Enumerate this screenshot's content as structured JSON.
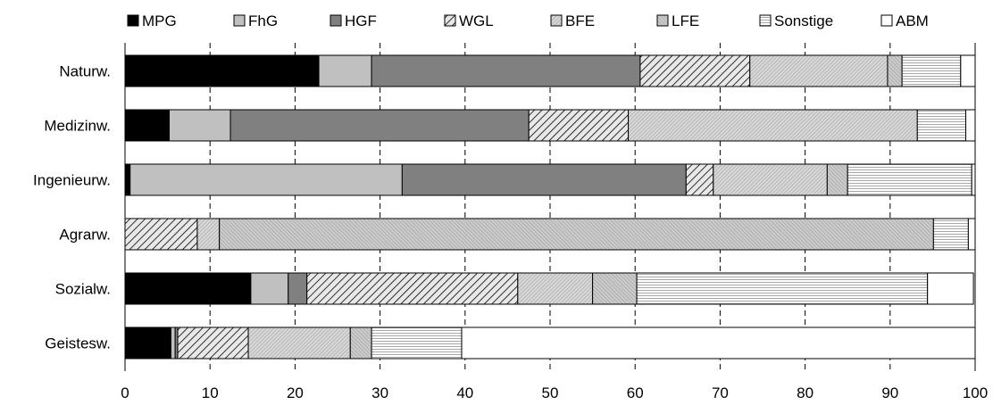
{
  "chart_data": {
    "type": "bar",
    "orientation": "horizontal",
    "stacked": true,
    "categories": [
      "Naturw.",
      "Medizinw.",
      "Ingenieurw.",
      "Agrarw.",
      "Sozialw.",
      "Geistesw."
    ],
    "series": [
      {
        "name": "MPG",
        "values": [
          22.8,
          5.2,
          0.6,
          0,
          14.8,
          5.4
        ]
      },
      {
        "name": "FhG",
        "values": [
          6.2,
          7.2,
          32.0,
          0,
          4.4,
          0.5
        ]
      },
      {
        "name": "HGF",
        "values": [
          31.6,
          35.1,
          33.4,
          0,
          2.2,
          0.3
        ]
      },
      {
        "name": "WGL",
        "values": [
          12.9,
          11.7,
          3.2,
          8.5,
          24.8,
          8.3
        ]
      },
      {
        "name": "BFE",
        "values": [
          16.2,
          34.0,
          13.4,
          2.6,
          8.8,
          12.0
        ]
      },
      {
        "name": "LFE",
        "values": [
          1.7,
          0,
          2.4,
          84.0,
          5.2,
          2.5
        ]
      },
      {
        "name": "Sonstige",
        "values": [
          6.9,
          5.7,
          14.6,
          4.1,
          34.2,
          10.6
        ]
      },
      {
        "name": "ABM",
        "values": [
          1.7,
          1.1,
          0.4,
          0.8,
          5.4,
          60.4
        ]
      }
    ],
    "xlim": [
      0,
      100
    ],
    "xticks": [
      0,
      10,
      20,
      30,
      40,
      50,
      60,
      70,
      80,
      90,
      100
    ],
    "grid": "vertical dashed",
    "legend_position": "top",
    "colors": {
      "MPG": "#000000",
      "FhG": "#c0c0c0",
      "HGF": "#808080",
      "WGL": "hatched",
      "BFE": "#c4c4c4",
      "LFE": "#b8b8b8",
      "Sonstige": "#eeeeee",
      "ABM": "#ffffff"
    }
  }
}
